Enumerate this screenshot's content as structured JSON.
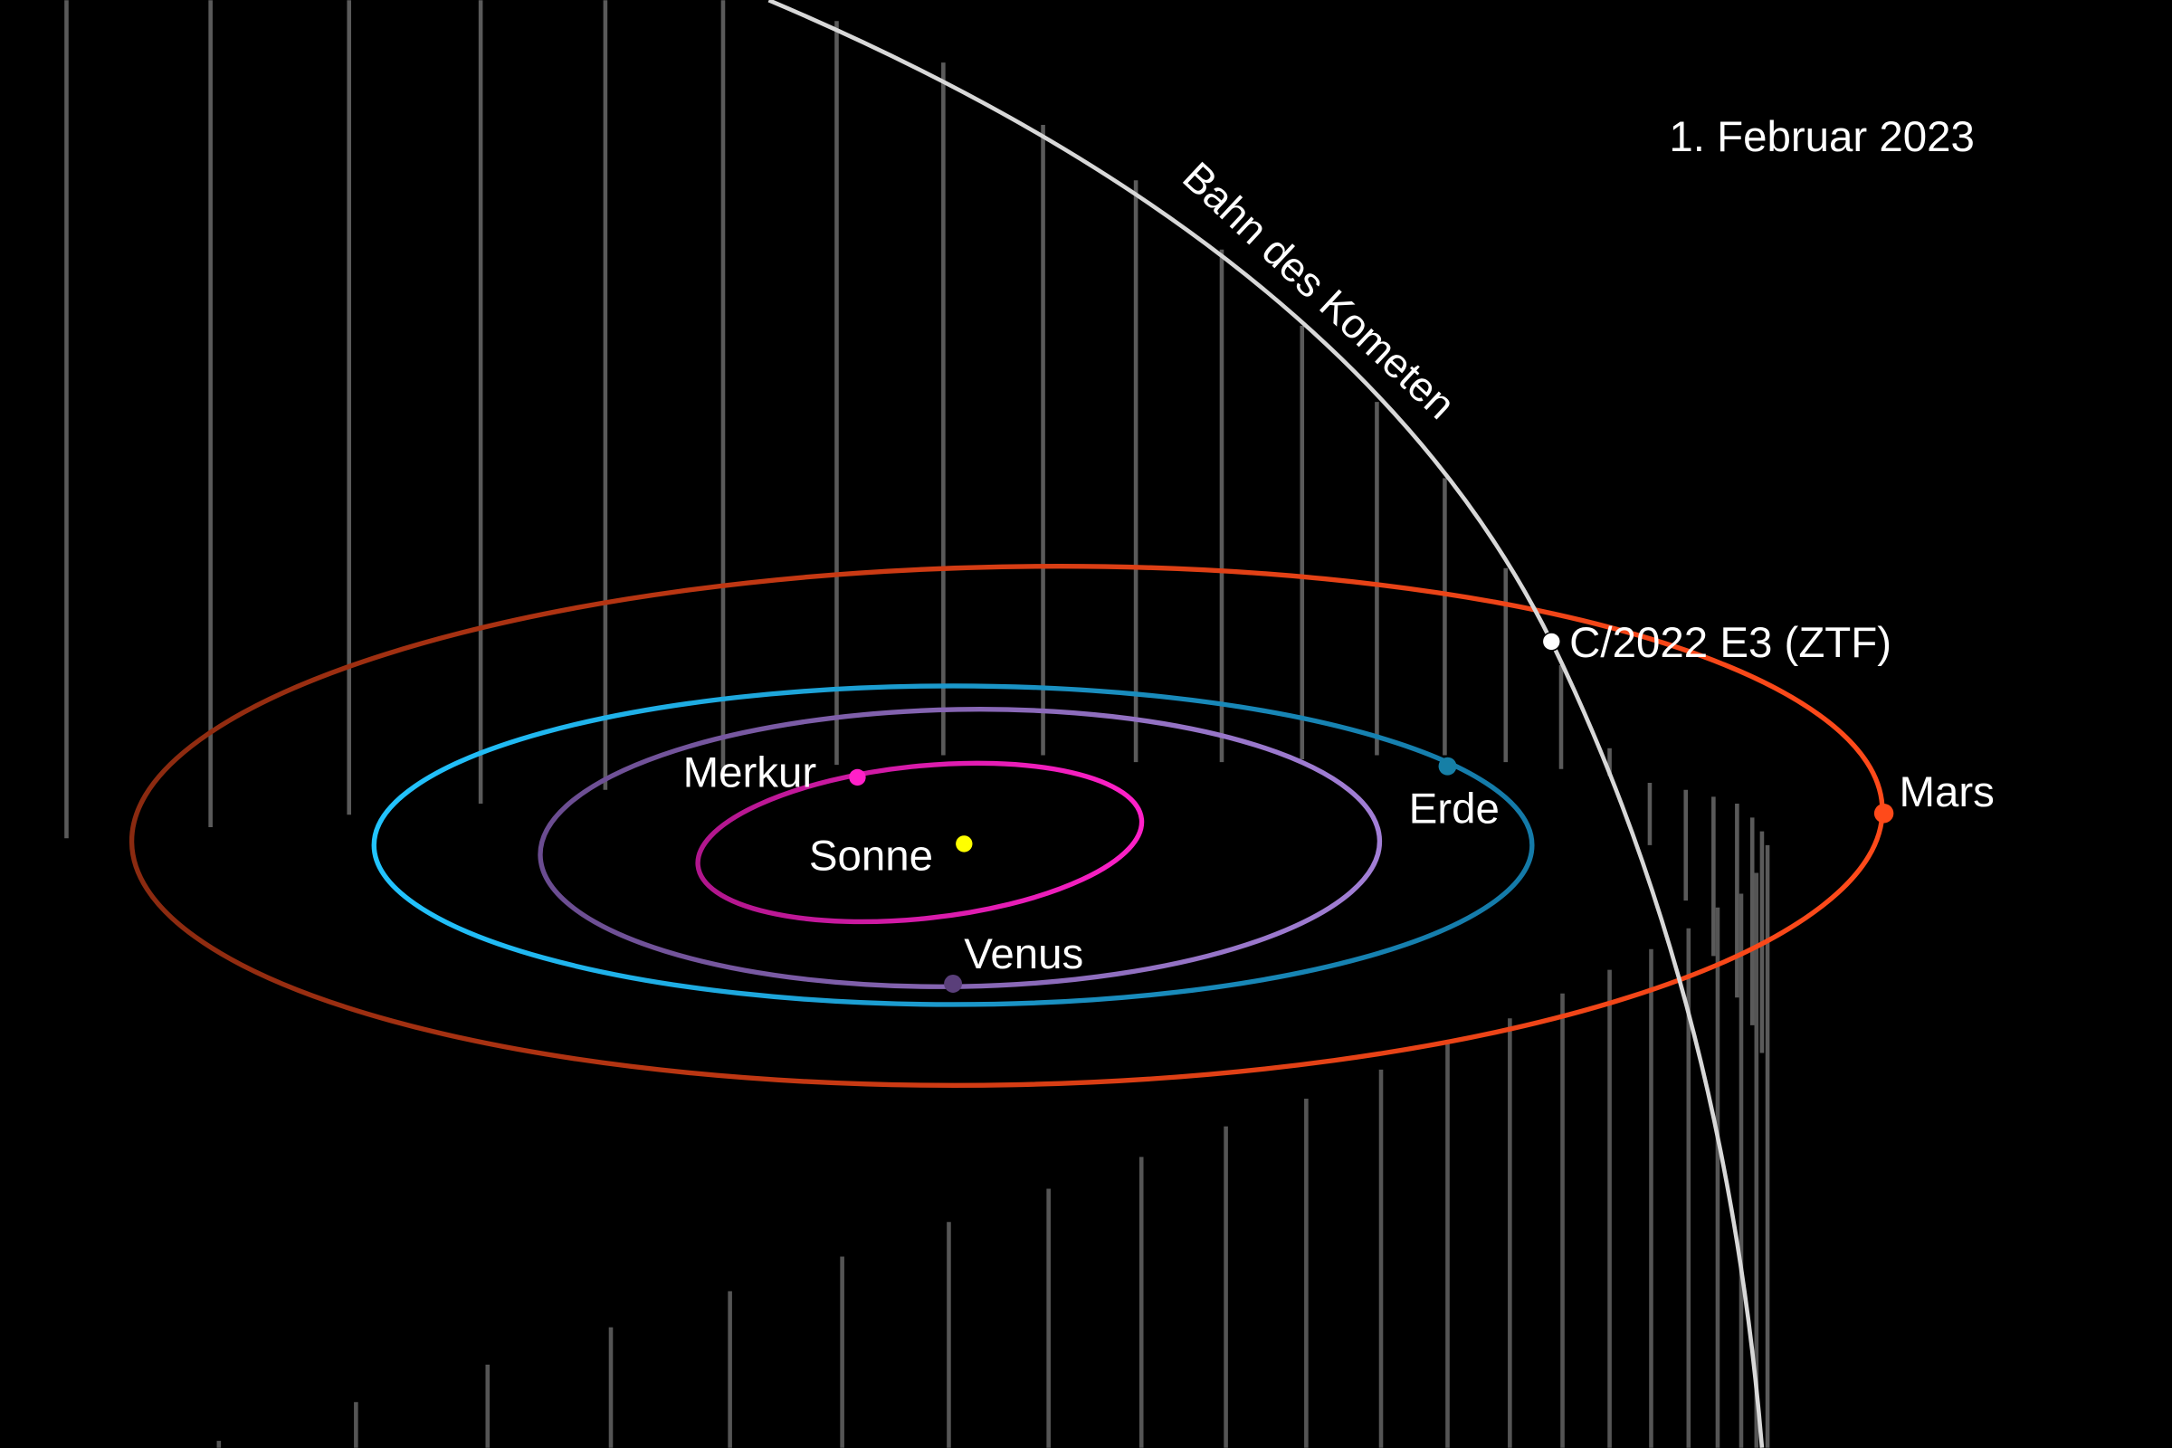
{
  "date": "1. Februar 2023",
  "comet_path_label": "Bahn des Kometen",
  "comet_label": "C/2022 E3 (ZTF)",
  "bodies": {
    "sun": {
      "label": "Sonne",
      "color": "#ffff00"
    },
    "mercury": {
      "label": "Merkur",
      "color": "#e81cb4"
    },
    "venus": {
      "label": "Venus",
      "color": "#8e6bbf"
    },
    "earth": {
      "label": "Erde",
      "color": "#1aa3d9"
    },
    "mars": {
      "label": "Mars",
      "color": "#ff4a1a"
    },
    "comet": {
      "color": "#ffffff"
    }
  }
}
